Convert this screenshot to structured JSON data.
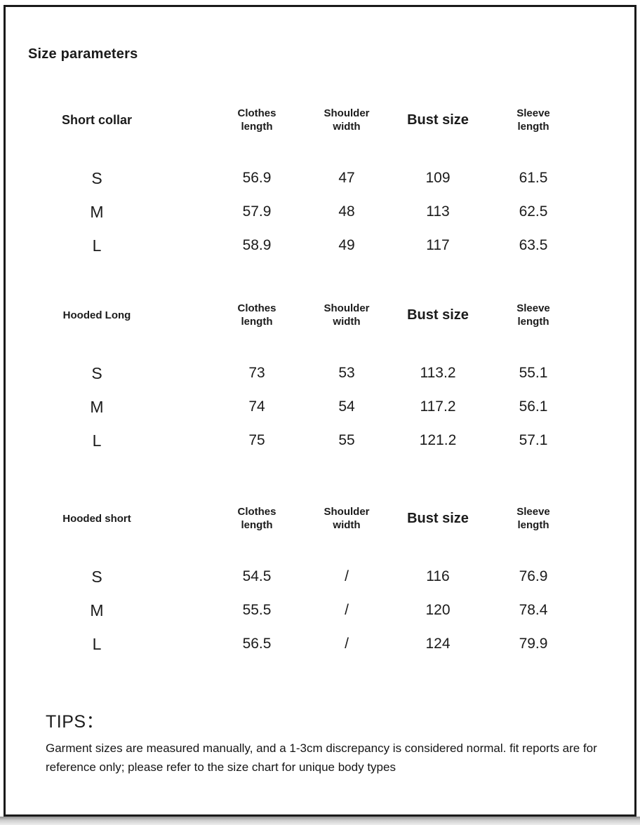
{
  "page": {
    "title": "Size parameters",
    "text_color": "#1b1b1b",
    "background": "#ffffff",
    "frame_border_color": "#1a1a1a"
  },
  "tables": [
    {
      "name": "Short collar",
      "headers": [
        "Clothes\nlength",
        "Shoulder\nwidth",
        "Bust size",
        "Sleeve\nlength"
      ],
      "rows": [
        {
          "size": "S",
          "values": [
            "56.9",
            "47",
            "109",
            "61.5"
          ]
        },
        {
          "size": "M",
          "values": [
            "57.9",
            "48",
            "113",
            "62.5"
          ]
        },
        {
          "size": "L",
          "values": [
            "58.9",
            "49",
            "117",
            "63.5"
          ]
        }
      ]
    },
    {
      "name": "Hooded Long",
      "headers": [
        "Clothes\nlength",
        "Shoulder\nwidth",
        "Bust size",
        "Sleeve\nlength"
      ],
      "rows": [
        {
          "size": "S",
          "values": [
            "73",
            "53",
            "113.2",
            "55.1"
          ]
        },
        {
          "size": "M",
          "values": [
            "74",
            "54",
            "117.2",
            "56.1"
          ]
        },
        {
          "size": "L",
          "values": [
            "75",
            "55",
            "121.2",
            "57.1"
          ]
        }
      ]
    },
    {
      "name": "Hooded short",
      "headers": [
        "Clothes\nlength",
        "Shoulder\nwidth",
        "Bust size",
        "Sleeve\nlength"
      ],
      "rows": [
        {
          "size": "S",
          "values": [
            "54.5",
            "/",
            "116",
            "76.9"
          ]
        },
        {
          "size": "M",
          "values": [
            "55.5",
            "/",
            "120",
            "78.4"
          ]
        },
        {
          "size": "L",
          "values": [
            "56.5",
            "/",
            "124",
            "79.9"
          ]
        }
      ]
    }
  ],
  "tips": {
    "heading": "TIPS：",
    "body": "Garment sizes are measured manually, and a 1-3cm discrepancy is considered normal. fit reports are for reference only; please refer to the size chart for unique body types"
  }
}
